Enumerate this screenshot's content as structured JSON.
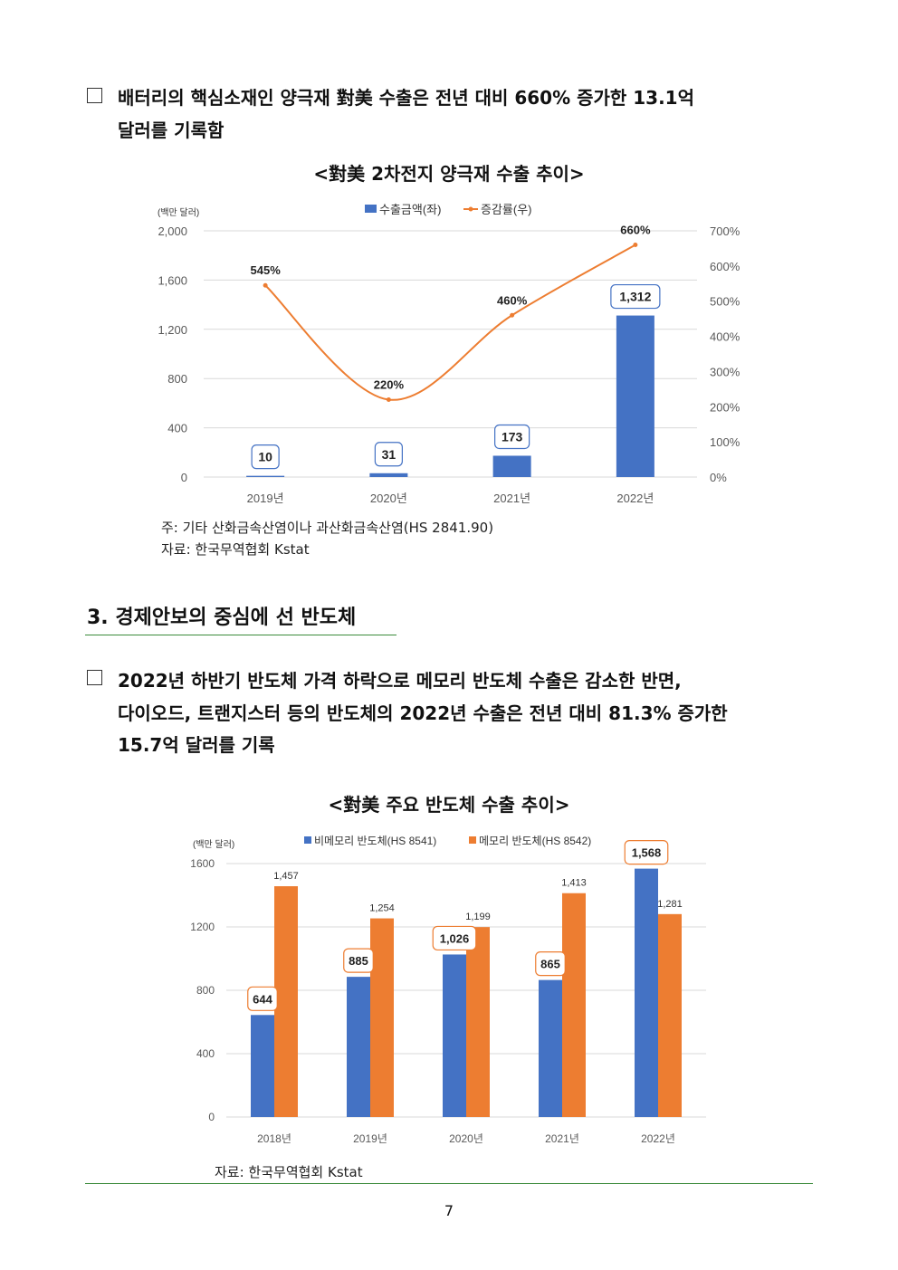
{
  "para1": {
    "line1": "배터리의 핵심소재인 양극재 對美 수출은 전년 대비 660% 증가한 13.1억",
    "line2": "달러를 기록함"
  },
  "chart1_title": "<對美 2차전지 양극재 수출 추이>",
  "chart1_note": "주: 기타 산화금속산염이나 과산화금속산염(HS 2841.90)",
  "chart1_source": "자료: 한국무역협회 Kstat",
  "section3_title": "3. 경제안보의 중심에 선 반도체",
  "para2": {
    "line1": "2022년 하반기 반도체 가격 하락으로 메모리 반도체 수출은 감소한 반면,",
    "line2": "다이오드, 트랜지스터 등의 반도체의 2022년 수출은 전년 대비 81.3% 증가한",
    "line3": "15.7억 달러를 기록"
  },
  "chart2_title": "<對美 주요 반도체 수출 추이>",
  "chart2_source": "자료: 한국무역협회 Kstat",
  "page_number": "7",
  "colors": {
    "blue": "#4472C4",
    "orange": "#ED7D31",
    "rule": "#3a8a3a"
  },
  "chart_data": [
    {
      "type": "bar",
      "unit_label": "(백만 달러)",
      "categories": [
        "2019년",
        "2020년",
        "2021년",
        "2022년"
      ],
      "series": [
        {
          "name": "수출금액(좌)",
          "kind": "bar",
          "axis": "left",
          "values": [
            10,
            31,
            173,
            1312
          ],
          "labels": [
            "10",
            "31",
            "173",
            "1,312"
          ]
        },
        {
          "name": "증감률(우)",
          "kind": "line",
          "axis": "right",
          "values": [
            545,
            220,
            460,
            660
          ],
          "labels": [
            "545%",
            "220%",
            "460%",
            "660%"
          ]
        }
      ],
      "y_left": {
        "min": 0,
        "max": 2000,
        "ticks": [
          "0",
          "400",
          "800",
          "1,200",
          "1,600",
          "2,000"
        ]
      },
      "y_right": {
        "min": 0,
        "max": 700,
        "ticks": [
          "0%",
          "100%",
          "200%",
          "300%",
          "400%",
          "500%",
          "600%",
          "700%"
        ]
      },
      "legend_position": "top"
    },
    {
      "type": "bar",
      "unit_label": "(백만 달러)",
      "categories": [
        "2018년",
        "2019년",
        "2020년",
        "2021년",
        "2022년"
      ],
      "series": [
        {
          "name": "비메모리 반도체(HS 8541)",
          "values": [
            644,
            885,
            1026,
            865,
            1568
          ],
          "labels": [
            "644",
            "885",
            "1,026",
            "865",
            "1,568"
          ]
        },
        {
          "name": "메모리 반도체(HS 8542)",
          "values": [
            1457,
            1254,
            1199,
            1413,
            1281
          ],
          "labels": [
            "1,457",
            "1,254",
            "1,199",
            "1,413",
            "1,281"
          ]
        }
      ],
      "y": {
        "min": 0,
        "max": 1600,
        "ticks": [
          "0",
          "400",
          "800",
          "1200",
          "1600"
        ]
      },
      "legend_position": "top"
    }
  ]
}
